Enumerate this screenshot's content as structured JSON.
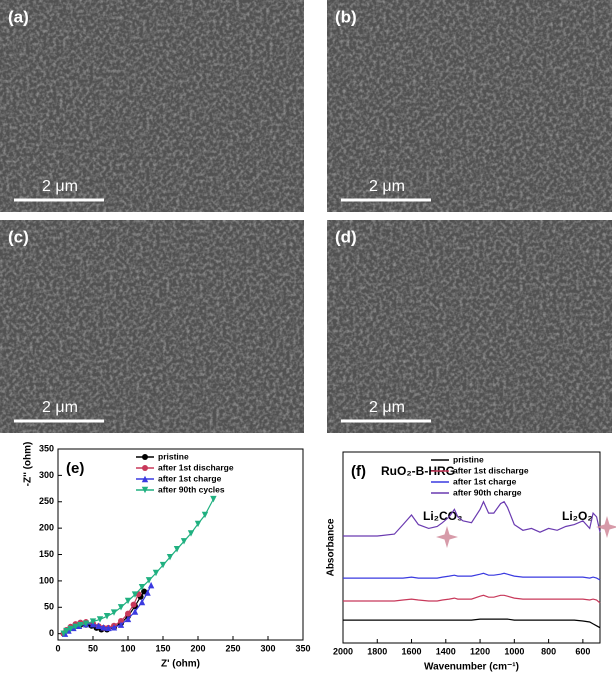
{
  "panels": [
    {
      "label": "(a)",
      "scale_bar": "2 μm"
    },
    {
      "label": "(b)",
      "scale_bar": "2 μm"
    },
    {
      "label": "(c)",
      "scale_bar": "2 μm"
    },
    {
      "label": "(d)",
      "scale_bar": "2 μm"
    }
  ],
  "chart_data": [
    {
      "type": "line",
      "panel_label": "(e)",
      "xlabel": "Z' (ohm)",
      "ylabel": "-Z'' (ohm)",
      "xlim": [
        0,
        350
      ],
      "xticks": [
        0,
        50,
        100,
        150,
        200,
        250,
        300,
        350
      ],
      "ylim": [
        -12,
        350
      ],
      "yticks": [
        0,
        50,
        100,
        150,
        200,
        250,
        300,
        350
      ],
      "legend": "upper left",
      "series": [
        {
          "name": "pristine",
          "color": "#000000",
          "marker": "circle",
          "x": [
            8,
            12,
            18,
            25,
            32,
            40,
            48,
            55,
            62,
            70,
            80,
            90,
            100,
            110,
            118,
            123
          ],
          "values": [
            0,
            6,
            11,
            15,
            17,
            17,
            15,
            11,
            8,
            8,
            12,
            20,
            33,
            52,
            70,
            80
          ]
        },
        {
          "name": "after 1st discharge",
          "color": "#c8385a",
          "marker": "circle",
          "x": [
            8,
            12,
            18,
            25,
            32,
            40,
            50,
            58,
            65,
            72,
            80,
            90,
            100,
            108,
            115
          ],
          "values": [
            0,
            7,
            13,
            18,
            21,
            22,
            19,
            14,
            11,
            11,
            15,
            24,
            38,
            55,
            75
          ]
        },
        {
          "name": "after 1st charge",
          "color": "#3a3ae0",
          "marker": "triangle",
          "x": [
            10,
            15,
            22,
            30,
            40,
            50,
            58,
            65,
            72,
            80,
            90,
            100,
            110,
            120,
            128,
            133
          ],
          "values": [
            0,
            6,
            11,
            15,
            18,
            18,
            15,
            12,
            11,
            12,
            17,
            28,
            42,
            60,
            78,
            92
          ]
        },
        {
          "name": "after 90th cycles",
          "color": "#20b080",
          "marker": "triangle-down",
          "x": [
            8,
            12,
            18,
            25,
            32,
            40,
            50,
            60,
            70,
            80,
            90,
            100,
            110,
            120,
            130,
            140,
            150,
            160,
            170,
            180,
            190,
            200,
            210,
            222
          ],
          "values": [
            0,
            5,
            9,
            13,
            16,
            19,
            23,
            27,
            33,
            40,
            50,
            62,
            74,
            88,
            101,
            115,
            130,
            145,
            160,
            175,
            190,
            208,
            225,
            255
          ]
        }
      ]
    },
    {
      "type": "line",
      "panel_label": "(f)",
      "xlabel": "Wavenumber (cm⁻¹)",
      "ylabel": "Absorbance",
      "annotations": [
        "RuO₂-B-HRG",
        "Li₂CO₃",
        "Li₂O₂"
      ],
      "xlim": [
        2000,
        500
      ],
      "xticks": [
        2000,
        1800,
        1600,
        1400,
        1200,
        1000,
        800,
        600
      ],
      "ylim": [
        0,
        100
      ],
      "legend": "upper center",
      "x": [
        2000,
        1800,
        1700,
        1650,
        1600,
        1560,
        1500,
        1450,
        1420,
        1380,
        1350,
        1330,
        1300,
        1250,
        1200,
        1180,
        1150,
        1120,
        1080,
        1060,
        1040,
        1000,
        950,
        900,
        850,
        800,
        750,
        700,
        650,
        600,
        560,
        540,
        520,
        500
      ],
      "series": [
        {
          "name": "pristine",
          "color": "#000000",
          "values": [
            12,
            12,
            12,
            12,
            12,
            12,
            12,
            12,
            12,
            12,
            12,
            12,
            12,
            12,
            12.5,
            12.5,
            12.5,
            12.5,
            12.5,
            12.5,
            12.5,
            12,
            12,
            12,
            12,
            12,
            12,
            12,
            12,
            11.5,
            11,
            10,
            9,
            8
          ]
        },
        {
          "name": "after 1st discharge",
          "color": "#c8385a",
          "values": [
            22,
            22,
            22,
            22.5,
            23,
            22.5,
            22,
            22,
            22.5,
            23,
            23.5,
            23,
            23,
            23,
            24.5,
            25,
            24,
            24,
            25,
            25,
            24.5,
            23.5,
            23,
            23,
            23,
            23,
            23,
            23,
            23,
            23,
            22.5,
            23,
            22.5,
            21
          ]
        },
        {
          "name": "after 1st charge",
          "color": "#3a3ae0",
          "values": [
            34,
            34,
            34,
            34,
            34.5,
            34,
            34,
            34,
            34.5,
            35,
            35.5,
            35,
            35,
            35,
            36,
            36.5,
            35.5,
            35.5,
            36,
            36.5,
            36,
            35,
            34.5,
            34.5,
            34.5,
            34.5,
            34.5,
            34.5,
            34.5,
            34.5,
            34,
            34.5,
            34,
            33
          ]
        },
        {
          "name": "after 90th charge",
          "color": "#6a3ab0",
          "values": [
            56,
            56,
            57,
            62,
            67,
            62,
            60,
            61,
            63,
            66,
            70,
            66,
            64,
            63,
            70,
            74,
            68,
            68,
            73,
            74,
            71,
            62,
            59,
            60,
            58,
            60,
            59,
            61,
            62,
            64,
            60,
            68,
            66,
            58
          ]
        }
      ]
    }
  ]
}
